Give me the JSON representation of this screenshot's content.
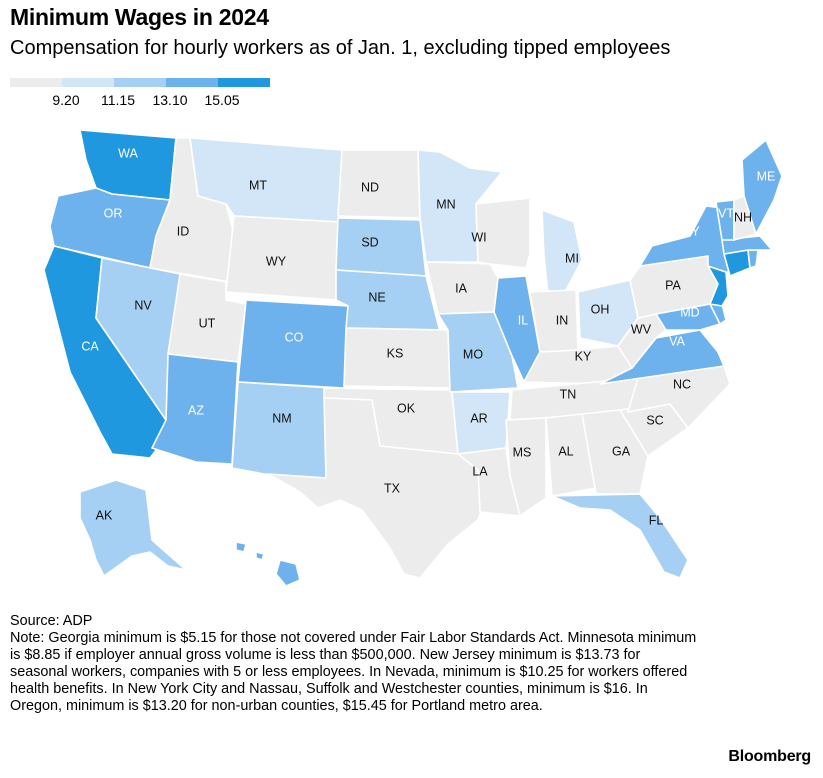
{
  "header": {
    "title": "Minimum Wages in 2024",
    "subtitle": "Compensation for hourly workers as of Jan. 1, excluding tipped employees"
  },
  "legend": {
    "breaks": [
      "9.20",
      "11.15",
      "13.10",
      "15.05"
    ],
    "colors": [
      "#ececec",
      "#d2e6f7",
      "#a5d0f3",
      "#6db2ec",
      "#1f98e0"
    ]
  },
  "states": [
    {
      "abbr": "WA",
      "bin": 4
    },
    {
      "abbr": "OR",
      "bin": 3
    },
    {
      "abbr": "CA",
      "bin": 4
    },
    {
      "abbr": "ID",
      "bin": 0
    },
    {
      "abbr": "NV",
      "bin": 2
    },
    {
      "abbr": "UT",
      "bin": 0
    },
    {
      "abbr": "AZ",
      "bin": 3
    },
    {
      "abbr": "MT",
      "bin": 1
    },
    {
      "abbr": "WY",
      "bin": 0
    },
    {
      "abbr": "CO",
      "bin": 3
    },
    {
      "abbr": "NM",
      "bin": 2
    },
    {
      "abbr": "ND",
      "bin": 0
    },
    {
      "abbr": "SD",
      "bin": 2
    },
    {
      "abbr": "NE",
      "bin": 2
    },
    {
      "abbr": "KS",
      "bin": 0
    },
    {
      "abbr": "OK",
      "bin": 0
    },
    {
      "abbr": "TX",
      "bin": 0
    },
    {
      "abbr": "MN",
      "bin": 1
    },
    {
      "abbr": "IA",
      "bin": 0
    },
    {
      "abbr": "MO",
      "bin": 2
    },
    {
      "abbr": "AR",
      "bin": 1
    },
    {
      "abbr": "LA",
      "bin": 0
    },
    {
      "abbr": "WI",
      "bin": 0
    },
    {
      "abbr": "IL",
      "bin": 3
    },
    {
      "abbr": "MI",
      "bin": 1
    },
    {
      "abbr": "IN",
      "bin": 0
    },
    {
      "abbr": "OH",
      "bin": 1
    },
    {
      "abbr": "KY",
      "bin": 0
    },
    {
      "abbr": "TN",
      "bin": 0
    },
    {
      "abbr": "MS",
      "bin": 0
    },
    {
      "abbr": "AL",
      "bin": 0
    },
    {
      "abbr": "GA",
      "bin": 0
    },
    {
      "abbr": "FL",
      "bin": 2
    },
    {
      "abbr": "SC",
      "bin": 0
    },
    {
      "abbr": "NC",
      "bin": 0
    },
    {
      "abbr": "VA",
      "bin": 3
    },
    {
      "abbr": "WV",
      "bin": 0
    },
    {
      "abbr": "MD",
      "bin": 3
    },
    {
      "abbr": "DE",
      "bin": 3
    },
    {
      "abbr": "PA",
      "bin": 0
    },
    {
      "abbr": "NJ",
      "bin": 4
    },
    {
      "abbr": "NY",
      "bin": 3
    },
    {
      "abbr": "CT",
      "bin": 4
    },
    {
      "abbr": "RI",
      "bin": 3
    },
    {
      "abbr": "MA",
      "bin": 3
    },
    {
      "abbr": "VT",
      "bin": 3
    },
    {
      "abbr": "NH",
      "bin": 0
    },
    {
      "abbr": "ME",
      "bin": 3
    },
    {
      "abbr": "AK",
      "bin": 2
    },
    {
      "abbr": "HI",
      "bin": 3
    }
  ],
  "footer": {
    "source": "Source: ADP",
    "note": "Note: Georgia minimum is $5.15 for those not covered under Fair Labor Standards Act. Minnesota minimum is $8.85 if employer annual gross volume is less than $500,000. New Jersey minimum is $13.73 for seasonal workers, companies with 5 or less employees. In Nevada, minimum is $10.25 for workers offered health benefits. In New York City and Nassau, Suffolk and Westchester counties, minimum is $16. In Oregon, minimum is $13.20 for non-urban counties, $15.45 for Portland metro area.",
    "brand": "Bloomberg"
  }
}
